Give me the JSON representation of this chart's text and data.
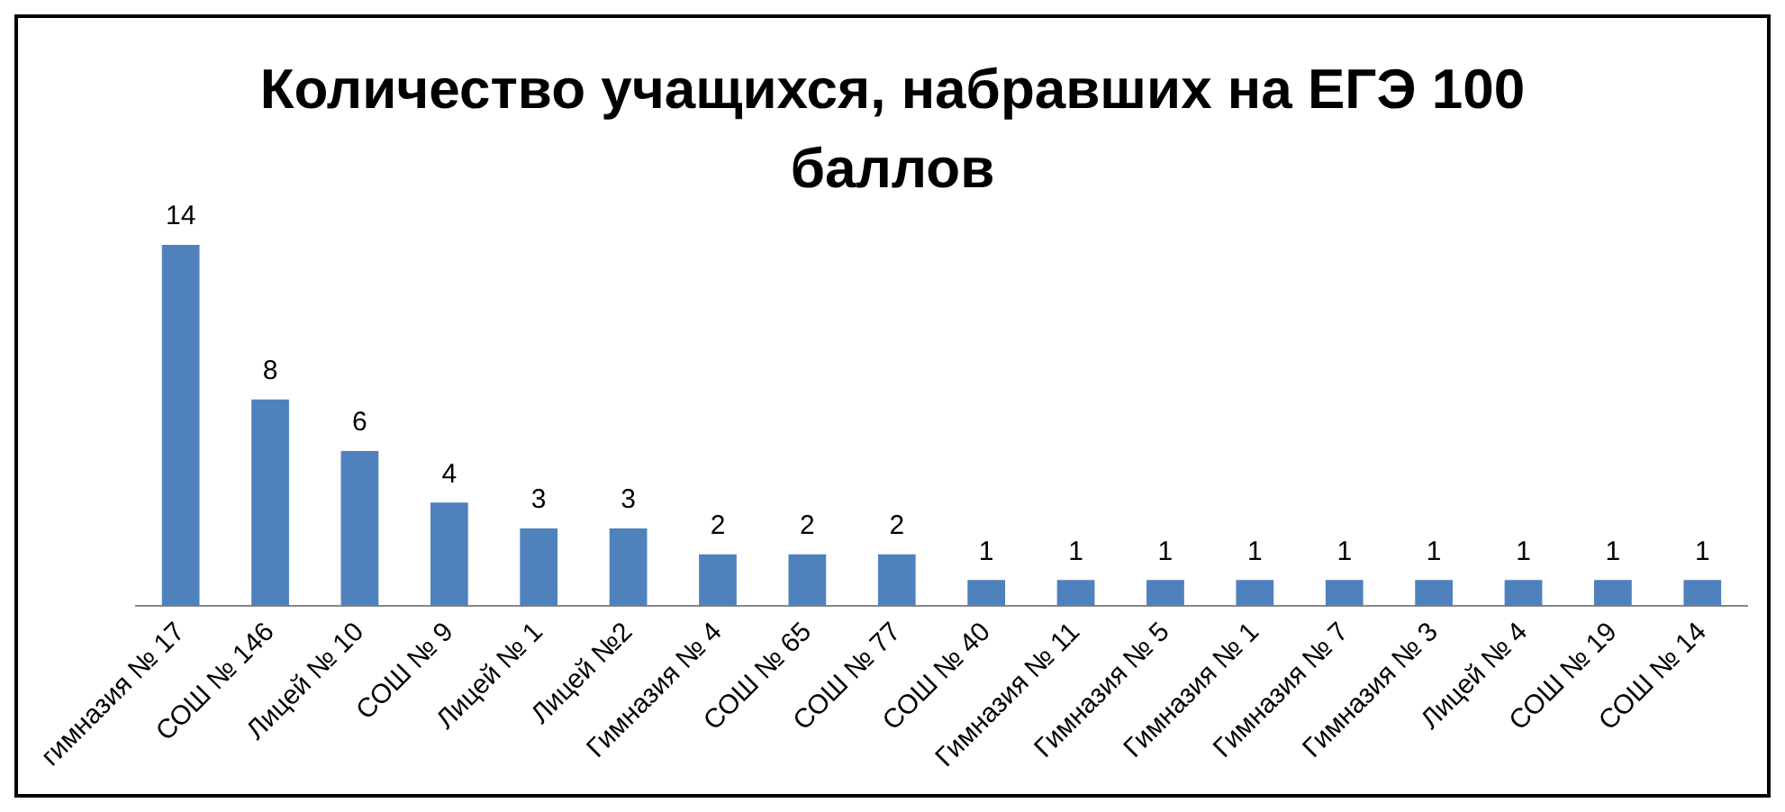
{
  "chart_data": {
    "type": "bar",
    "title": "Количество учащихся, набравших на ЕГЭ 100 баллов",
    "categories": [
      "гимназия № 17",
      "СОШ № 146",
      "Лицей № 10",
      "СОШ № 9",
      "Лицей № 1",
      "Лицей №2",
      "Гимназия № 4",
      "СОШ № 65",
      "СОШ № 77",
      "СОШ № 40",
      "Гимназия № 11",
      "Гимназия № 5",
      "Гимназия № 1",
      "Гимназия № 7",
      "Гимназия № 3",
      "Лицей № 4",
      "СОШ № 19",
      "СОШ № 14"
    ],
    "values": [
      14,
      8,
      6,
      4,
      3,
      3,
      2,
      2,
      2,
      1,
      1,
      1,
      1,
      1,
      1,
      1,
      1,
      1
    ],
    "color": "#4f81bd",
    "data_labels": true,
    "legend": false,
    "grid": false
  }
}
